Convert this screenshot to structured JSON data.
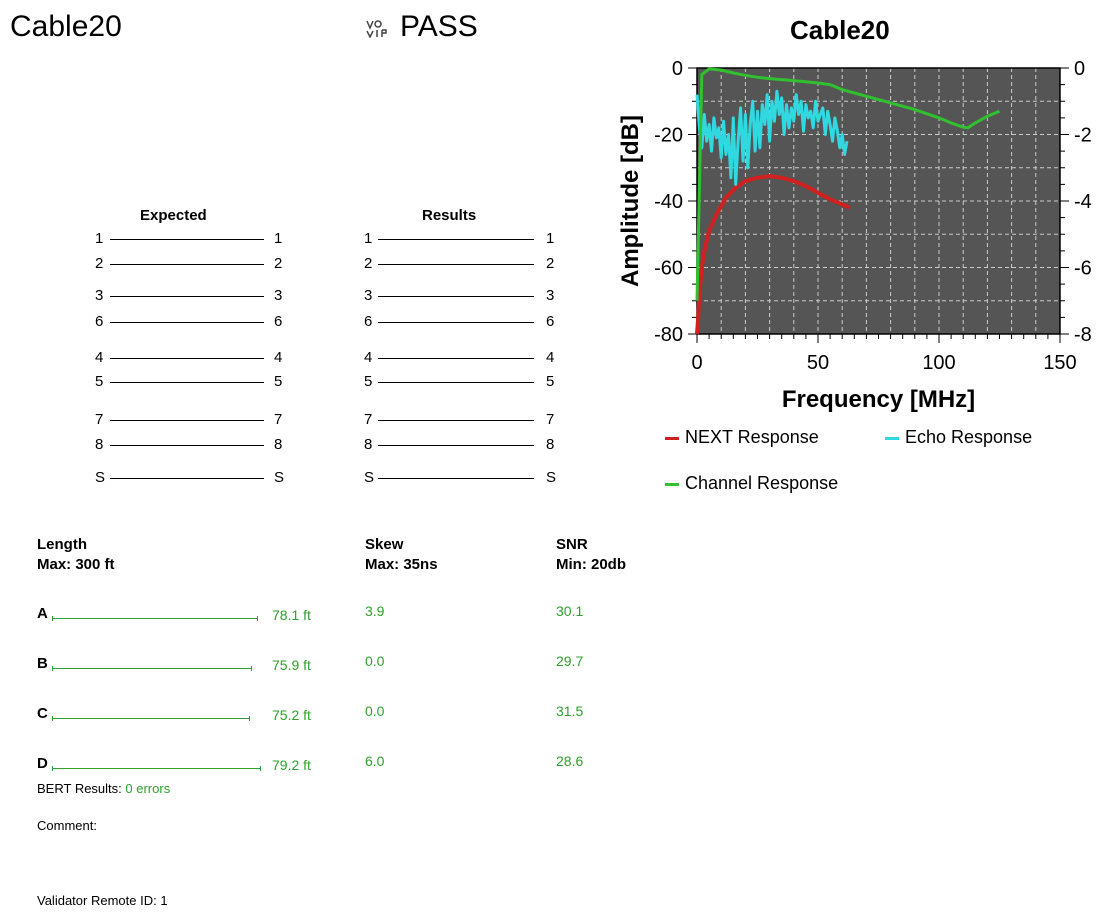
{
  "header": {
    "cable_name": "Cable20",
    "status": "PASS",
    "voip_icon": "voip-icon"
  },
  "wiremap": {
    "expected_label": "Expected",
    "results_label": "Results",
    "pins": [
      "1",
      "2",
      "3",
      "6",
      "4",
      "5",
      "7",
      "8",
      "S"
    ]
  },
  "measurements": {
    "length_label": "Length",
    "length_max": "Max: 300 ft",
    "skew_label": "Skew",
    "skew_max": "Max: 35ns",
    "snr_label": "SNR",
    "snr_min": "Min: 20db",
    "pairs": [
      {
        "name": "A",
        "length": "78.1 ft",
        "length_value": 78.1,
        "skew": "3.9",
        "snr": "30.1"
      },
      {
        "name": "B",
        "length": "75.9 ft",
        "length_value": 75.9,
        "skew": "0.0",
        "snr": "29.7"
      },
      {
        "name": "C",
        "length": "75.2 ft",
        "length_value": 75.2,
        "skew": "0.0",
        "snr": "31.5"
      },
      {
        "name": "D",
        "length": "79.2 ft",
        "length_value": 79.2,
        "skew": "6.0",
        "snr": "28.6"
      }
    ]
  },
  "footer": {
    "bert_label": "BERT Results:",
    "bert_value": "0 errors",
    "comment_label": "Comment:",
    "remote_label": "Validator Remote ID:",
    "remote_value": "1"
  },
  "colors": {
    "green_text": "#2ea02e",
    "plot_bg": "#555555",
    "next": "#d02020",
    "echo": "#30d8e0",
    "channel": "#30c030"
  },
  "chart_data": {
    "type": "line",
    "title": "Cable20",
    "xlabel": "Frequency [MHz]",
    "ylabel": "Amplitude [dB]",
    "xlim": [
      0,
      150
    ],
    "ylim": [
      -80,
      0
    ],
    "xticks": [
      "0",
      "50",
      "100",
      "150"
    ],
    "yticks": [
      "0",
      "-20",
      "-40",
      "-60",
      "-80"
    ],
    "yticks_right": [
      "0",
      "-2",
      "-4",
      "-6",
      "-8"
    ],
    "grid": true,
    "series": [
      {
        "name": "NEXT Response",
        "color": "#d02020",
        "x": [
          0,
          0.5,
          1,
          2,
          3,
          5,
          8,
          12,
          16,
          20,
          25,
          30,
          35,
          40,
          45,
          50,
          55,
          60,
          63
        ],
        "y": [
          -80,
          -75,
          -68,
          -60,
          -55,
          -49,
          -44,
          -39,
          -36,
          -34,
          -33,
          -32.5,
          -33,
          -34,
          -35.5,
          -37.5,
          -39.5,
          -41,
          -42
        ]
      },
      {
        "name": "Echo Response",
        "color": "#30d8e0",
        "x": [
          0,
          1,
          2,
          3,
          4,
          5,
          6,
          7,
          8,
          9,
          10,
          11,
          12,
          13,
          14,
          15,
          16,
          17,
          18,
          19,
          20,
          21,
          22,
          23,
          24,
          25,
          26,
          27,
          28,
          29,
          30,
          31,
          32,
          33,
          34,
          35,
          36,
          37,
          38,
          39,
          40,
          41,
          42,
          43,
          44,
          45,
          46,
          47,
          48,
          49,
          50,
          51,
          52,
          53,
          54,
          55,
          56,
          57,
          58,
          59,
          60,
          61,
          62
        ],
        "y": [
          -8,
          -18,
          -24,
          -14,
          -22,
          -17,
          -25,
          -15,
          -21,
          -18,
          -27,
          -16,
          -26,
          -20,
          -33,
          -15,
          -35,
          -22,
          -12,
          -28,
          -14,
          -30,
          -17,
          -10,
          -25,
          -13,
          -24,
          -11,
          -17,
          -8,
          -22,
          -10,
          -16,
          -7,
          -14,
          -9,
          -20,
          -11,
          -18,
          -12,
          -16,
          -8,
          -14,
          -10,
          -19,
          -11,
          -15,
          -13,
          -18,
          -10,
          -16,
          -14,
          -12,
          -20,
          -13,
          -17,
          -22,
          -15,
          -19,
          -24,
          -20,
          -26,
          -22
        ]
      },
      {
        "name": "Channel Response",
        "color": "#30c030",
        "x": [
          0,
          2,
          5,
          10,
          15,
          20,
          25,
          30,
          40,
          50,
          55,
          60,
          70,
          80,
          90,
          100,
          105,
          110,
          112,
          115,
          120,
          125
        ],
        "y": [
          -70,
          -2,
          -0.3,
          -0.6,
          -1.5,
          -2.2,
          -2.8,
          -3.2,
          -3.8,
          -4.5,
          -5,
          -6.5,
          -8.5,
          -10.5,
          -12.5,
          -15,
          -16.5,
          -17.8,
          -18,
          -16.5,
          -14.5,
          -13
        ]
      }
    ],
    "legend_placement": "bottom"
  }
}
